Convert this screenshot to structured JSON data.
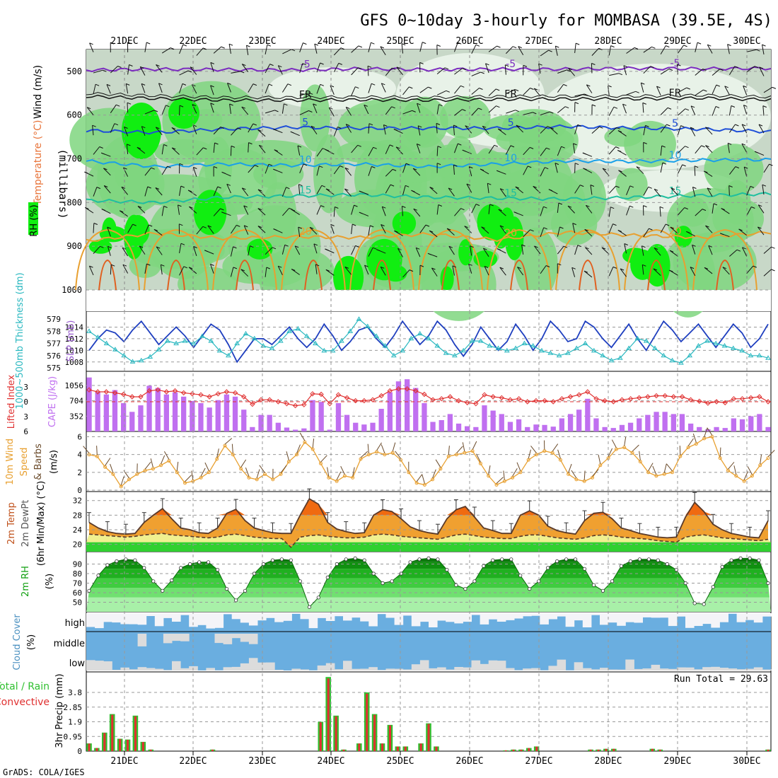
{
  "title": "GFS 0~10day 3-hourly for MOMBASA (39.5E, 4S)",
  "footer": "GrADS: COLA/IGES",
  "run_total": "Run Total = 29.63",
  "dates": [
    "21DEC",
    "22DEC",
    "23DEC",
    "24DEC",
    "25DEC",
    "26DEC",
    "27DEC",
    "28DEC",
    "29DEC",
    "30DEC"
  ],
  "colors": {
    "rh_light": "#e8f2e8",
    "rh_mid": "#c8d8c8",
    "rh_green": "#7fd67f",
    "rh_bright": "#11ee11",
    "t_m5": "#7b2cbf",
    "t_fr": "#111111",
    "t_5": "#1f4fd8",
    "t_10": "#1aa0e8",
    "t_15": "#1fbf9f",
    "t_20": "#e8a030",
    "t_25": "#e06020",
    "slp": "#1f3fbf",
    "thick": "#2ab8c0",
    "cape": "#c070f0",
    "li": "#e03030",
    "wind10": "#e8a030",
    "barb": "#6a4a2a",
    "temp_fill": "#f0a030",
    "temp_hot": "#f06a10",
    "dew_fill": "#f0f090",
    "green_band": "#30d030",
    "rh2m": "#10a010",
    "cloud": "#6aaee0",
    "cloud_gap": "#f4f4f8",
    "cloud_low": "#dcdcdc",
    "precip_total": "#30c030",
    "precip_conv": "#e03030"
  },
  "chart_data": [
    {
      "id": "upper_air",
      "type": "heatmap",
      "ylabel_parts": [
        "Wind (m/s)",
        "Temperature (°C)",
        "RH (%)"
      ],
      "ylabel2": "(millibars)",
      "yticks": [
        500,
        600,
        700,
        800,
        900,
        1000
      ],
      "ylim": [
        450,
        1000
      ],
      "isotherms": [
        {
          "label": "-5",
          "color_key": "t_m5",
          "levels": [
            497,
            495,
            496,
            497,
            494,
            496,
            495,
            495,
            493,
            494,
            493
          ]
        },
        {
          "label": "FR",
          "color_key": "t_fr",
          "levels": [
            557,
            562,
            566,
            566,
            565,
            566,
            564,
            563,
            563,
            561,
            565
          ]
        },
        {
          "label": "5",
          "color_key": "t_5",
          "levels": [
            635,
            640,
            632,
            628,
            630,
            630,
            630,
            626,
            630,
            632,
            638
          ]
        },
        {
          "label": "10",
          "color_key": "t_10",
          "levels": [
            705,
            718,
            712,
            715,
            712,
            718,
            712,
            705,
            706,
            703,
            702
          ]
        },
        {
          "label": "15",
          "color_key": "t_15",
          "levels": [
            795,
            800,
            788,
            785,
            782,
            788,
            790,
            792,
            788,
            784,
            780
          ]
        },
        {
          "label": "20",
          "color_key": "t_20",
          "levels": [
            888,
            870,
            882,
            878,
            880,
            872,
            885,
            868,
            875,
            880,
            868
          ]
        }
      ]
    },
    {
      "id": "slp_thickness",
      "type": "line",
      "ylabel": "SLP (mb)",
      "ylabel2": "1000~500mb Thickness (dm)",
      "left_ticks": [
        575,
        576,
        577,
        578,
        579
      ],
      "right_ticks": [
        1008,
        1010,
        1012,
        1014
      ],
      "series": [
        {
          "name": "SLP (mb)",
          "color_key": "slp",
          "values": [
            1010.0,
            1012.0,
            1013.5,
            1013.0,
            1011.5,
            1013.5,
            1015.0,
            1013.0,
            1011.0,
            1012.5,
            1014.0,
            1012.5,
            1010.5,
            1012.5,
            1014.5,
            1013.5,
            1011.0,
            1008.0,
            1010.0,
            1012.0,
            1012.0,
            1011.0,
            1012.5,
            1014.0,
            1012.0,
            1010.5,
            1012.0,
            1014.5,
            1012.5,
            1010.0,
            1011.5,
            1013.5,
            1014.0,
            1012.0,
            1010.5,
            1012.5,
            1015.0,
            1013.0,
            1011.0,
            1012.5,
            1015.0,
            1013.5,
            1011.0,
            1009.0,
            1011.0,
            1014.0,
            1012.0,
            1010.0,
            1011.5,
            1014.5,
            1012.5,
            1010.0,
            1012.0,
            1015.0,
            1013.5,
            1011.5,
            1012.0,
            1015.0,
            1014.0,
            1012.0,
            1010.5,
            1012.5,
            1014.5,
            1012.0,
            1010.0,
            1012.5,
            1015.0,
            1013.5,
            1011.5,
            1013.0,
            1014.5,
            1012.5,
            1010.5,
            1012.5,
            1014.5,
            1013.0,
            1010.5,
            1012.0,
            1014.5
          ]
        },
        {
          "name": "Thickness (dm)",
          "color_key": "thick",
          "values": [
            578.0,
            577.5,
            577.0,
            576.5,
            576.0,
            575.5,
            575.6,
            575.9,
            576.5,
            577.2,
            577.0,
            577.2,
            577.0,
            577.6,
            577.2,
            576.4,
            576.0,
            577.0,
            577.8,
            577.4,
            576.8,
            576.6,
            577.2,
            578.0,
            578.2,
            577.6,
            577.0,
            576.4,
            576.4,
            577.2,
            578.0,
            579.0,
            578.4,
            577.6,
            576.8,
            576.0,
            576.4,
            577.4,
            577.8,
            577.4,
            576.8,
            576.2,
            576.0,
            576.4,
            577.2,
            577.2,
            576.8,
            576.6,
            576.4,
            576.6,
            577.0,
            576.8,
            576.4,
            576.2,
            576.0,
            576.2,
            576.6,
            577.0,
            576.4,
            576.0,
            575.6,
            575.8,
            576.6,
            577.4,
            577.2,
            576.6,
            576.0,
            575.6,
            575.4,
            576.0,
            576.8,
            577.2,
            577.0,
            576.8,
            576.6,
            576.4,
            576.0,
            576.0,
            575.8
          ]
        }
      ]
    },
    {
      "id": "cape_li",
      "type": "bar",
      "ylabel": "Lifted Index",
      "ylabel2": "CAPE (J/kg)",
      "left_ticks": [
        -3,
        0,
        3,
        6
      ],
      "right_ticks": [
        352,
        704,
        1056
      ],
      "series": [
        {
          "name": "CAPE (J/kg)",
          "color_key": "cape",
          "values": [
            1240,
            900,
            850,
            950,
            650,
            450,
            600,
            1050,
            1000,
            850,
            900,
            800,
            700,
            650,
            550,
            720,
            850,
            800,
            500,
            100,
            380,
            380,
            200,
            90,
            40,
            70,
            720,
            680,
            40,
            650,
            380,
            200,
            160,
            200,
            520,
            900,
            1150,
            1200,
            1000,
            650,
            220,
            260,
            400,
            180,
            120,
            100,
            600,
            480,
            400,
            220,
            280,
            100,
            160,
            150,
            110,
            300,
            400,
            500,
            750,
            300,
            100,
            80,
            150,
            200,
            300,
            380,
            450,
            450,
            400,
            400,
            180,
            100,
            50,
            100,
            80,
            300,
            280,
            350,
            400,
            100
          ]
        },
        {
          "name": "Lifted Index",
          "color_key": "li",
          "values": [
            -2.4,
            -2.0,
            -2.0,
            -1.8,
            -1.5,
            -1.0,
            -1.0,
            -2.2,
            -2.4,
            -2.0,
            -2.2,
            -1.8,
            -1.6,
            -1.4,
            -1.0,
            -1.6,
            -2.0,
            -1.8,
            -1.0,
            0.5,
            -0.4,
            -0.4,
            0.0,
            0.4,
            0.8,
            0.6,
            -1.6,
            -1.5,
            0.4,
            -1.4,
            -0.8,
            -0.2,
            -0.2,
            -0.4,
            -1.2,
            -2.2,
            -2.6,
            -2.6,
            -2.2,
            -1.5,
            -0.4,
            -0.6,
            -1.0,
            -0.2,
            0.2,
            0.4,
            -1.4,
            -1.0,
            -0.8,
            -0.4,
            -0.6,
            0.0,
            -0.2,
            -0.2,
            0.0,
            -0.6,
            -1.0,
            -1.4,
            -2.0,
            -0.6,
            -0.2,
            0.0,
            -0.4,
            -0.6,
            -0.8,
            -1.0,
            -1.2,
            -1.2,
            -1.0,
            -1.0,
            -0.4,
            -0.1,
            0.3,
            0.0,
            0.2,
            -0.6,
            -0.6,
            -0.8,
            -1.0,
            0.0
          ]
        }
      ]
    },
    {
      "id": "wind10m",
      "type": "line",
      "ylabel": "10m Wind Speed & Barbs",
      "ylabel2": "(m/s)",
      "left_ticks": [
        0,
        2,
        4,
        6
      ],
      "series": [
        {
          "name": "10m Wind Speed",
          "color_key": "wind10",
          "values": [
            4.0,
            3.8,
            2.6,
            1.8,
            0.4,
            1.2,
            1.8,
            2.2,
            2.4,
            2.8,
            3.3,
            2.0,
            0.8,
            1.0,
            1.4,
            2.0,
            3.5,
            5.0,
            4.0,
            2.4,
            1.4,
            1.2,
            1.8,
            1.2,
            1.8,
            3.2,
            4.0,
            5.4,
            4.6,
            3.0,
            1.4,
            1.0,
            1.6,
            1.4,
            3.5,
            4.0,
            4.3,
            4.0,
            4.2,
            3.4,
            2.0,
            0.8,
            0.6,
            1.2,
            2.4,
            3.8,
            4.0,
            4.2,
            4.4,
            3.0,
            1.6,
            0.6,
            1.0,
            1.4,
            2.0,
            3.4,
            4.0,
            4.4,
            4.2,
            3.4,
            1.8,
            1.2,
            1.0,
            1.4,
            2.8,
            3.6,
            4.6,
            4.8,
            4.2,
            3.2,
            2.0,
            1.6,
            1.8,
            2.0,
            3.8,
            4.8,
            5.2,
            5.8,
            6.0,
            3.6,
            2.2,
            1.6,
            1.0,
            1.6,
            2.8,
            3.6
          ]
        }
      ]
    },
    {
      "id": "temp2m",
      "type": "area",
      "ylabel": "2m Temp",
      "ylabel2": "2m DewPt",
      "ylabel3": "(6hr Min/Max) (°C)",
      "left_ticks": [
        20,
        24,
        28,
        32
      ],
      "series": [
        {
          "name": "2m Temp",
          "color_key": "temp_fill",
          "values": [
            26.0,
            24.5,
            23.5,
            23.0,
            22.8,
            23.0,
            26.0,
            28.0,
            29.8,
            27.0,
            24.5,
            24.0,
            23.2,
            23.0,
            24.5,
            28.5,
            29.6,
            26.5,
            24.5,
            23.8,
            23.2,
            23.0,
            23.0,
            28.0,
            32.5,
            31.0,
            26.0,
            24.2,
            23.5,
            23.0,
            23.2,
            28.0,
            29.5,
            29.0,
            27.0,
            24.8,
            23.8,
            23.2,
            22.8,
            27.0,
            29.5,
            30.4,
            27.5,
            24.5,
            23.8,
            23.0,
            23.0,
            28.0,
            29.2,
            28.0,
            25.0,
            23.8,
            23.2,
            22.8,
            26.5,
            28.5,
            28.8,
            27.0,
            24.5,
            23.8,
            23.0,
            22.5,
            22.0,
            21.8,
            22.0,
            27.5,
            31.5,
            29.0,
            25.5,
            24.0,
            23.0,
            22.5,
            22.0,
            21.8,
            26.5
          ]
        },
        {
          "name": "2m DewPt",
          "color_key": "barb",
          "values": [
            22.8,
            22.6,
            22.4,
            22.2,
            22.0,
            22.2,
            22.6,
            22.8,
            23.0,
            22.6,
            22.4,
            22.2,
            22.0,
            21.8,
            22.0,
            22.6,
            22.8,
            22.4,
            22.0,
            21.8,
            21.6,
            21.6,
            19.2,
            22.0,
            22.4,
            22.6,
            22.2,
            22.0,
            21.8,
            21.8,
            22.0,
            22.6,
            22.8,
            22.6,
            22.2,
            22.0,
            21.8,
            21.6,
            21.4,
            22.0,
            22.6,
            22.8,
            22.4,
            22.0,
            21.8,
            21.6,
            21.6,
            22.2,
            22.6,
            22.6,
            22.2,
            21.8,
            21.6,
            21.4,
            21.8,
            22.4,
            22.6,
            22.4,
            22.0,
            21.8,
            21.6,
            21.4,
            21.0,
            20.8,
            20.6,
            22.0,
            22.4,
            22.6,
            22.2,
            21.8,
            21.6,
            21.4,
            21.2,
            21.0,
            21.4
          ]
        }
      ]
    },
    {
      "id": "rh2m",
      "type": "area",
      "ylabel": "2m RH",
      "ylabel2": "(%)",
      "left_ticks": [
        50,
        60,
        70,
        80,
        90
      ],
      "series": [
        {
          "name": "2m RH",
          "color_key": "rh2m",
          "values": [
            62,
            78,
            89,
            93,
            95,
            94,
            86,
            72,
            62,
            73,
            86,
            90,
            92,
            92,
            84,
            64,
            52,
            62,
            80,
            90,
            94,
            95,
            94,
            72,
            45,
            55,
            76,
            90,
            95,
            96,
            94,
            80,
            70,
            72,
            80,
            92,
            95,
            96,
            95,
            84,
            68,
            64,
            72,
            88,
            94,
            95,
            95,
            78,
            64,
            72,
            86,
            93,
            95,
            95,
            85,
            68,
            62,
            72,
            88,
            93,
            95,
            95,
            94,
            90,
            84,
            70,
            49,
            48,
            66,
            87,
            94,
            96,
            96,
            94,
            70
          ]
        }
      ]
    },
    {
      "id": "cloud",
      "type": "bar",
      "ylabel": "Cloud Cover",
      "ylabel2": "(%)",
      "layers": [
        "high",
        "middle",
        "low"
      ]
    },
    {
      "id": "precip",
      "type": "bar",
      "ylabel": "Total / Rain",
      "ylabel_conv": "Convective",
      "ylabel2": "3hr Precip (mm)",
      "left_ticks": [
        0,
        0.95,
        1.9,
        2.85,
        3.8
      ],
      "series": [
        {
          "name": "Total / Rain",
          "color_key": "precip_total",
          "values": [
            0.5,
            0.2,
            1.2,
            2.4,
            0.8,
            0.75,
            2.3,
            0.6,
            0.1,
            0,
            0,
            0,
            0,
            0,
            0,
            0,
            0.1,
            0,
            0,
            0,
            0,
            0,
            0,
            0,
            0,
            0,
            0,
            0,
            0,
            0,
            1.9,
            4.8,
            2.3,
            0.1,
            0,
            0.5,
            3.8,
            2.4,
            0.5,
            1.7,
            0.3,
            0.3,
            0,
            0.5,
            1.8,
            0.3,
            0,
            0,
            0,
            0,
            0,
            0,
            0,
            0,
            0.05,
            0.1,
            0.1,
            0.2,
            0.3,
            0,
            0,
            0,
            0,
            0,
            0,
            0.1,
            0.1,
            0.15,
            0.15,
            0,
            0,
            0,
            0,
            0.15,
            0.1,
            0,
            0,
            0,
            0,
            0,
            0,
            0,
            0,
            0,
            0,
            0,
            0,
            0,
            0.1
          ]
        }
      ]
    }
  ]
}
